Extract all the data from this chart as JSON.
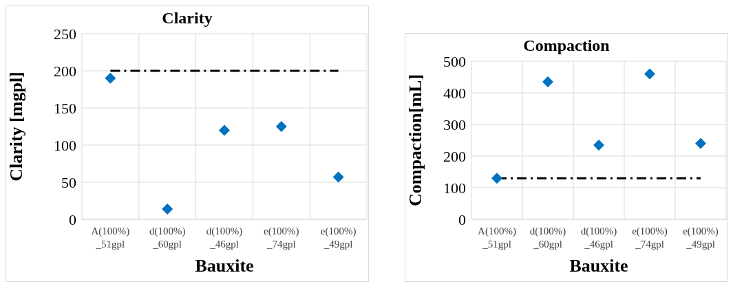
{
  "chart_data": [
    {
      "type": "scatter",
      "title": "Clarity",
      "xlabel": "Bauxite",
      "ylabel": "Clarity [mgpl]",
      "categories": [
        "A(100%)\n_51gpl",
        "d(100%)\n_60gpl",
        "d(100%)\n_46gpl",
        "e(100%)\n_74gpl",
        "e(100%)\n_49gpl"
      ],
      "series": [
        {
          "color": "#0070c0",
          "values": [
            190,
            14,
            120,
            125,
            57
          ]
        },
        {
          "type": "line",
          "color": "#000000",
          "line_style": "dashed",
          "marker": "none",
          "values": [
            200,
            200,
            200,
            200,
            200
          ]
        }
      ],
      "marker": "diamond",
      "ylim": [
        0,
        250
      ],
      "yticks": [
        0,
        50,
        100,
        150,
        200,
        250
      ],
      "grid": true
    },
    {
      "type": "scatter",
      "title": "Compaction",
      "xlabel": "Bauxite",
      "ylabel": "Compaction[mL]",
      "categories": [
        "A(100%)\n_51gpl",
        "d(100%)\n_60gpl",
        "d(100%)\n_46gpl",
        "e(100%)\n_74gpl",
        "e(100%)\n_49gpl"
      ],
      "series": [
        {
          "color": "#0070c0",
          "values": [
            130,
            435,
            235,
            460,
            240
          ]
        },
        {
          "type": "line",
          "color": "#000000",
          "line_style": "dashed",
          "marker": "none",
          "values": [
            130,
            130,
            130,
            130,
            130
          ]
        }
      ],
      "marker": "diamond",
      "ylim": [
        0,
        500
      ],
      "yticks": [
        0,
        100,
        200,
        300,
        400,
        500
      ],
      "grid": true
    }
  ]
}
